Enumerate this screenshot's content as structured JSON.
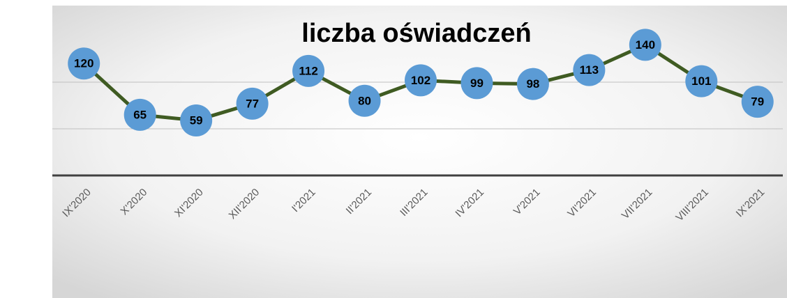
{
  "chart_data": {
    "type": "line",
    "title": "liczba oświadczeń",
    "categories": [
      "IX'2020",
      "X'2020",
      "XI'2020",
      "XII'2020",
      "I'2021",
      "II'2021",
      "III'2021",
      "IV'2021",
      "V'2021",
      "VI'2021",
      "VII'2021",
      "VIII'2021",
      "IX'2021"
    ],
    "series": [
      {
        "name": "liczba oświadczeń",
        "color": "#3f5b22",
        "marker_color": "#5b9bd5",
        "values": [
          120,
          65,
          59,
          77,
          112,
          80,
          102,
          99,
          98,
          113,
          140,
          101,
          79
        ]
      }
    ],
    "ylim": [
      0,
      150
    ],
    "yticks": [
      0,
      50,
      100
    ],
    "grid": true
  }
}
